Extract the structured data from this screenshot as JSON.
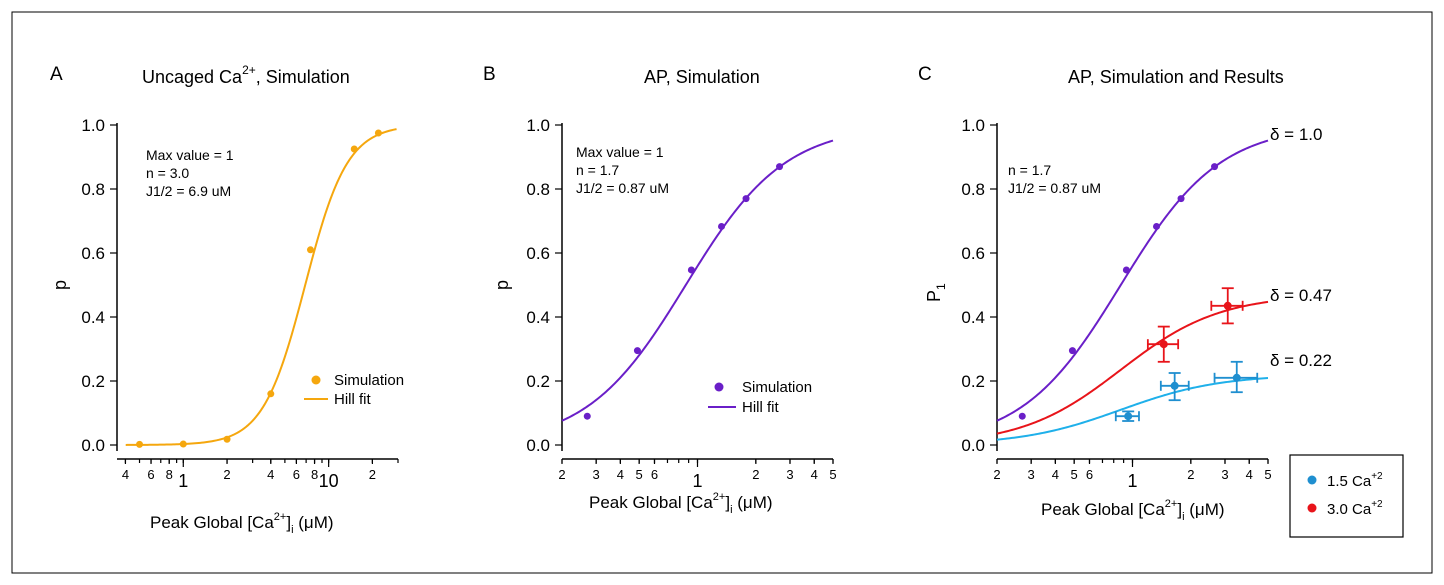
{
  "panels": [
    {
      "letter": "A",
      "title": "Uncaged Ca",
      "title_sup": "2+",
      "title_rest": ", Simulation",
      "ylabel": "p",
      "xlabel_pre": "Peak Global [Ca",
      "xlabel_sup": "2+",
      "xlabel_mid": "]",
      "xlabel_sub": "i",
      "xlabel_post": " (μM)",
      "annotation": [
        "Max value = 1",
        "n = 3.0",
        "J1/2 = 6.9 uM"
      ],
      "legend": {
        "points_label": "Simulation",
        "line_label": "Hill fit"
      }
    },
    {
      "letter": "B",
      "title": "AP, Simulation",
      "ylabel": "p",
      "xlabel_pre": "Peak Global [Ca",
      "xlabel_sup": "2+",
      "xlabel_mid": "]",
      "xlabel_sub": "i",
      "xlabel_post": " (μM)",
      "annotation": [
        "Max value = 1",
        "n = 1.7",
        "J1/2 = 0.87 uM"
      ],
      "legend": {
        "points_label": "Simulation",
        "line_label": "Hill fit"
      }
    },
    {
      "letter": "C",
      "title": "AP, Simulation and Results",
      "ylabel": "P",
      "ylabel_sub": "1",
      "xlabel_pre": "Peak Global [Ca",
      "xlabel_sup": "2+",
      "xlabel_mid": "]",
      "xlabel_sub": "i",
      "xlabel_post": " (μM)",
      "annotation": [
        "n = 1.7",
        "J1/2 = 0.87 uM"
      ],
      "curve_labels": [
        "δ = 1.0",
        "δ = 0.47",
        "δ = 0.22"
      ],
      "legend": [
        {
          "label": "1.5 Ca",
          "sup": "+2",
          "color": "#1f8fd0"
        },
        {
          "label": "3.0 Ca",
          "sup": "+2",
          "color": "#e8141a"
        }
      ]
    }
  ],
  "chart_data": [
    {
      "type": "scatter",
      "xscale": "log",
      "xlim": [
        0.35,
        30
      ],
      "ylim": [
        0,
        1
      ],
      "yticks": [
        "0.0",
        "0.2",
        "0.4",
        "0.6",
        "0.8",
        "1.0"
      ],
      "xticks_major": [
        "1",
        "10"
      ],
      "xticks_minor": [
        "4",
        "6",
        "8",
        "2",
        "4",
        "6",
        "8",
        "2"
      ],
      "color": "#f5a70e",
      "series": [
        {
          "name": "Simulation",
          "x": [
            0.5,
            1.0,
            2.0,
            4.0,
            7.5,
            15.0,
            22.0
          ],
          "y": [
            0.002,
            0.003,
            0.018,
            0.16,
            0.61,
            0.925,
            0.975
          ]
        },
        {
          "name": "Hill fit",
          "fit": {
            "max": 1,
            "n": 3.0,
            "k": 6.9
          },
          "x_range": [
            0.4,
            30
          ]
        }
      ]
    },
    {
      "type": "scatter",
      "xscale": "log",
      "xlim": [
        0.2,
        5
      ],
      "ylim": [
        0,
        1
      ],
      "yticks": [
        "0.0",
        "0.2",
        "0.4",
        "0.6",
        "0.8",
        "1.0"
      ],
      "xticks_major": [
        "1"
      ],
      "xticks_minor": [
        "2",
        "3",
        "4",
        "5",
        "6",
        "2",
        "3",
        "4",
        "5"
      ],
      "color": "#6a1fc8",
      "series": [
        {
          "name": "Simulation",
          "x": [
            0.27,
            0.49,
            0.93,
            1.33,
            1.78,
            2.65
          ],
          "y": [
            0.09,
            0.295,
            0.547,
            0.683,
            0.77,
            0.87
          ]
        },
        {
          "name": "Hill fit",
          "fit": {
            "max": 1,
            "n": 1.7,
            "k": 0.87
          },
          "x_range": [
            0.2,
            5
          ]
        }
      ]
    },
    {
      "type": "scatter",
      "xscale": "log",
      "xlim": [
        0.2,
        5
      ],
      "ylim": [
        0,
        1
      ],
      "yticks": [
        "0.0",
        "0.2",
        "0.4",
        "0.6",
        "0.8",
        "1.0"
      ],
      "xticks_major": [
        "1"
      ],
      "xticks_minor": [
        "2",
        "3",
        "4",
        "5",
        "6",
        "2",
        "3",
        "4",
        "5"
      ],
      "series": [
        {
          "name": "δ = 1.0",
          "color": "#6a1fc8",
          "x": [
            0.27,
            0.49,
            0.93,
            1.33,
            1.78,
            2.65
          ],
          "y": [
            0.09,
            0.295,
            0.547,
            0.683,
            0.77,
            0.87
          ],
          "fit": {
            "max": 1.0,
            "n": 1.7,
            "k": 0.87
          }
        },
        {
          "name": "δ = 0.47",
          "color": "#e8141a",
          "fit": {
            "max": 0.47,
            "n": 1.7,
            "k": 0.87
          }
        },
        {
          "name": "δ = 0.22",
          "color": "#1fb0ea",
          "fit": {
            "max": 0.22,
            "n": 1.7,
            "k": 0.87
          }
        },
        {
          "name": "3.0 Ca+2",
          "color": "#e8141a",
          "points": [
            {
              "x": 1.45,
              "y": 0.315,
              "xerr": [
                1.2,
                1.72
              ],
              "yerr": [
                0.26,
                0.37
              ]
            },
            {
              "x": 3.1,
              "y": 0.435,
              "xerr": [
                2.55,
                3.7
              ],
              "yerr": [
                0.38,
                0.49
              ]
            }
          ]
        },
        {
          "name": "1.5 Ca+2",
          "color": "#1f8fd0",
          "points": [
            {
              "x": 0.95,
              "y": 0.09,
              "xerr": [
                0.82,
                1.08
              ],
              "yerr": [
                0.075,
                0.105
              ]
            },
            {
              "x": 1.65,
              "y": 0.185,
              "xerr": [
                1.4,
                1.95
              ],
              "yerr": [
                0.14,
                0.225
              ]
            },
            {
              "x": 3.45,
              "y": 0.21,
              "xerr": [
                2.65,
                4.4
              ],
              "yerr": [
                0.165,
                0.26
              ]
            }
          ]
        }
      ]
    }
  ]
}
